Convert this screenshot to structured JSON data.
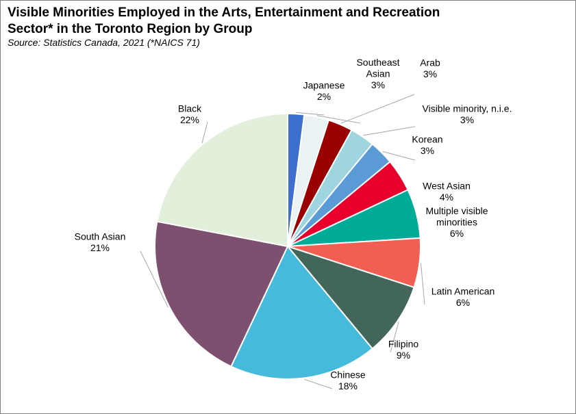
{
  "chart_data": {
    "type": "pie",
    "title": "Visible Minorities Employed in the Arts, Entertainment and Recreation Sector* in the Toronto Region by Group",
    "subtitle": "Source: Statistics Canada, 2021 (*NAICS 71)",
    "label_format": "category-and-percent",
    "legend": "none",
    "slices": [
      {
        "label": "Japanese",
        "value": 2,
        "value_label": "2%",
        "color": "#3c6fce"
      },
      {
        "label": "Southeast Asian",
        "label_lines": [
          "Southeast",
          "Asian"
        ],
        "value": 3,
        "value_label": "3%",
        "color": "#eaf2f4"
      },
      {
        "label": "Arab",
        "value": 3,
        "value_label": "3%",
        "color": "#9b0000"
      },
      {
        "label": "Visible minority, n.i.e.",
        "value": 3,
        "value_label": "3%",
        "color": "#9ed5df"
      },
      {
        "label": "Korean",
        "value": 3,
        "value_label": "3%",
        "color": "#5b9bd5"
      },
      {
        "label": "West Asian",
        "value": 4,
        "value_label": "4%",
        "color": "#e8002d"
      },
      {
        "label": "Multiple visible minorities",
        "label_lines": [
          "Multiple visible",
          "minorities"
        ],
        "value": 6,
        "value_label": "6%",
        "color": "#00ab97"
      },
      {
        "label": "Latin American",
        "value": 6,
        "value_label": "6%",
        "color": "#f15e52"
      },
      {
        "label": "Filipino",
        "value": 9,
        "value_label": "9%",
        "color": "#42675a"
      },
      {
        "label": "Chinese",
        "value": 18,
        "value_label": "18%",
        "color": "#46bada"
      },
      {
        "label": "South Asian",
        "value": 21,
        "value_label": "21%",
        "color": "#7d5070"
      },
      {
        "label": "Black",
        "value": 22,
        "value_label": "22%",
        "color": "#e2efda"
      }
    ]
  }
}
